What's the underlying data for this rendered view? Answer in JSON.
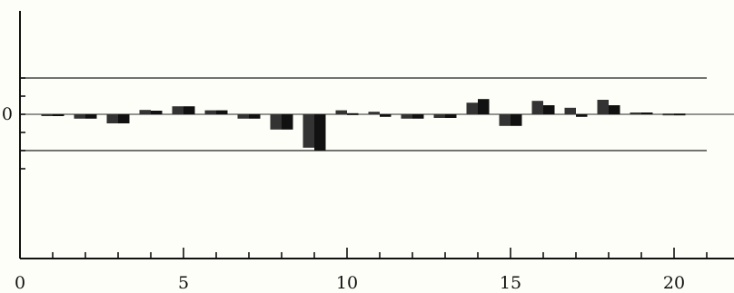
{
  "chart_data": {
    "type": "bar",
    "x_ticks": [
      "0",
      "5",
      "10",
      "15",
      "20"
    ],
    "y_ticks": [
      "0"
    ],
    "xlim": [
      0,
      21
    ],
    "ylim": [
      -1,
      1
    ],
    "reference_lines": [
      0.1,
      -0.1
    ],
    "series": [
      {
        "values": [
          -0.005,
          -0.012,
          -0.025,
          0.012,
          0.022,
          0.011,
          -0.012,
          -0.042,
          -0.092,
          0.011,
          0.007,
          -0.012,
          -0.01,
          0.032,
          -0.032,
          0.037,
          0.018,
          0.04,
          0.005,
          0.002
        ]
      },
      {
        "values": [
          -0.005,
          -0.012,
          -0.025,
          0.01,
          0.022,
          0.011,
          -0.012,
          -0.042,
          -0.1,
          0.003,
          -0.007,
          -0.012,
          -0.01,
          0.042,
          -0.032,
          0.025,
          -0.007,
          0.025,
          0.005,
          0.002
        ]
      }
    ],
    "colors": {
      "bar_dark": "#111111",
      "bar_light": "#333333",
      "axis": "#111111",
      "ref_line": "#444444",
      "background": "#fefef9"
    }
  }
}
